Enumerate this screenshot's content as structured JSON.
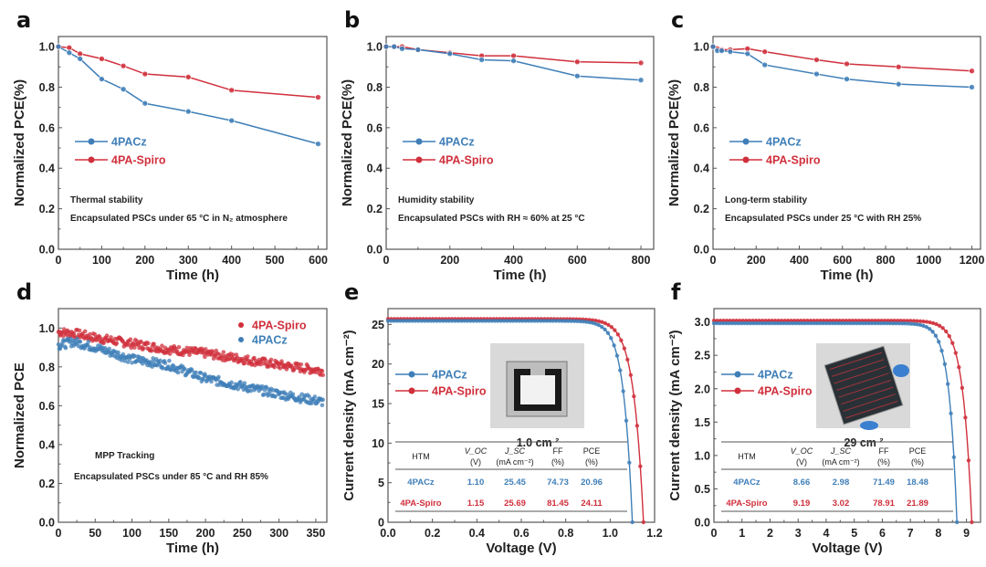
{
  "colors": {
    "4PACz": "#3f7fb8",
    "4PA-Spiro": "#d0303c",
    "axis": "#555555"
  },
  "chart_data": [
    {
      "panel": "a",
      "type": "line",
      "xlabel": "Time (h)",
      "ylabel": "Normalized PCE(%)",
      "xlim": [
        0,
        620
      ],
      "ylim": [
        0,
        1.05
      ],
      "xticks": [
        0,
        100,
        200,
        300,
        400,
        500,
        600
      ],
      "yticks": [
        0.0,
        0.2,
        0.4,
        0.6,
        0.8,
        1.0
      ],
      "ytick_labels": [
        "0.0",
        "0.2",
        "0.4",
        "0.6",
        "0.8",
        "1.0"
      ],
      "annotations": [
        "Thermal stability",
        "Encapsulated PSCs under 65 °C in N₂ atmosphere"
      ],
      "legend": "center-left",
      "series": [
        {
          "name": "4PACz",
          "x": [
            0,
            25,
            50,
            100,
            150,
            200,
            300,
            400,
            600
          ],
          "values": [
            1.0,
            0.97,
            0.94,
            0.84,
            0.79,
            0.72,
            0.68,
            0.635,
            0.52
          ]
        },
        {
          "name": "4PA-Spiro",
          "x": [
            0,
            25,
            50,
            100,
            150,
            200,
            300,
            400,
            600
          ],
          "values": [
            1.0,
            0.995,
            0.965,
            0.94,
            0.905,
            0.865,
            0.85,
            0.785,
            0.75
          ]
        }
      ]
    },
    {
      "panel": "b",
      "type": "line",
      "xlabel": "Time (h)",
      "ylabel": "Normalized PCE(%)",
      "xlim": [
        0,
        840
      ],
      "ylim": [
        0,
        1.05
      ],
      "xticks": [
        0,
        200,
        400,
        600,
        800
      ],
      "yticks": [
        0.0,
        0.2,
        0.4,
        0.6,
        0.8,
        1.0
      ],
      "ytick_labels": [
        "0.0",
        "0.2",
        "0.4",
        "0.6",
        "0.8",
        "1.0"
      ],
      "annotations": [
        "Humidity stability",
        "Encapsulated PSCs with  RH ≈ 60%  at 25 °C"
      ],
      "legend": "center-left",
      "series": [
        {
          "name": "4PACz",
          "x": [
            0,
            25,
            50,
            100,
            200,
            300,
            400,
            600,
            800
          ],
          "values": [
            1.0,
            1.0,
            0.99,
            0.985,
            0.965,
            0.935,
            0.93,
            0.855,
            0.835
          ]
        },
        {
          "name": "4PA-Spiro",
          "x": [
            0,
            25,
            50,
            100,
            200,
            300,
            400,
            600,
            800
          ],
          "values": [
            1.0,
            1.0,
            1.0,
            0.985,
            0.97,
            0.955,
            0.955,
            0.925,
            0.92
          ]
        }
      ]
    },
    {
      "panel": "c",
      "type": "line",
      "xlabel": "Time (h)",
      "ylabel": "Normalized PCE(%)",
      "xlim": [
        0,
        1240
      ],
      "ylim": [
        0,
        1.05
      ],
      "xticks": [
        0,
        200,
        400,
        600,
        800,
        1000,
        1200
      ],
      "yticks": [
        0.0,
        0.2,
        0.4,
        0.6,
        0.8,
        1.0
      ],
      "ytick_labels": [
        "0.0",
        "0.2",
        "0.4",
        "0.6",
        "0.8",
        "1.0"
      ],
      "annotations": [
        "Long-term stability",
        "Encapsulated PSCs under 25 °C  with RH 25%"
      ],
      "legend": "center-left",
      "series": [
        {
          "name": "4PACz",
          "x": [
            0,
            20,
            40,
            80,
            160,
            240,
            480,
            620,
            860,
            1200
          ],
          "values": [
            1.0,
            0.98,
            0.98,
            0.975,
            0.965,
            0.91,
            0.865,
            0.84,
            0.815,
            0.8
          ]
        },
        {
          "name": "4PA-Spiro",
          "x": [
            0,
            20,
            40,
            80,
            160,
            240,
            480,
            620,
            860,
            1200
          ],
          "values": [
            1.0,
            0.99,
            0.985,
            0.985,
            0.99,
            0.975,
            0.935,
            0.915,
            0.9,
            0.88
          ]
        }
      ]
    },
    {
      "panel": "d",
      "type": "scatter",
      "xlabel": "Time (h)",
      "ylabel": "Normalized PCE",
      "xlim": [
        0,
        365
      ],
      "ylim": [
        0,
        1.1
      ],
      "xticks": [
        0,
        50,
        100,
        150,
        200,
        250,
        300,
        350
      ],
      "yticks": [
        0.0,
        0.2,
        0.4,
        0.6,
        0.8,
        1.0
      ],
      "ytick_labels": [
        "0.0",
        "0.2",
        "0.4",
        "0.6",
        "0.8",
        "1.0"
      ],
      "annotations": [
        "MPP Tracking",
        "Encapsulated PSCs under 85 °C and RH 85%"
      ],
      "legend": "top-right",
      "series": [
        {
          "name": "4PA-Spiro",
          "x": [
            0,
            25,
            50,
            100,
            150,
            200,
            250,
            300,
            360
          ],
          "values": [
            0.98,
            0.97,
            0.95,
            0.92,
            0.89,
            0.87,
            0.84,
            0.81,
            0.78
          ]
        },
        {
          "name": "4PACz",
          "x": [
            0,
            20,
            50,
            100,
            150,
            200,
            250,
            300,
            360
          ],
          "values": [
            0.91,
            0.93,
            0.9,
            0.84,
            0.81,
            0.74,
            0.7,
            0.66,
            0.62
          ]
        }
      ]
    },
    {
      "panel": "e",
      "type": "line",
      "xlabel": "Voltage (V)",
      "ylabel": "Current density (mA cm⁻²)",
      "xlim": [
        0,
        1.2
      ],
      "ylim": [
        0,
        27
      ],
      "xticks": [
        0.0,
        0.2,
        0.4,
        0.6,
        0.8,
        1.0,
        1.2
      ],
      "xtick_labels": [
        "0.0",
        "0.2",
        "0.4",
        "0.6",
        "0.8",
        "1.0",
        "1.2"
      ],
      "yticks": [
        0,
        5,
        10,
        15,
        20,
        25
      ],
      "ytick_labels": [
        "0",
        "5",
        "10",
        "15",
        "20",
        "25"
      ],
      "legend": "center-left",
      "inset_caption": "1.0 cm ²",
      "series": [
        {
          "name": "4PACz",
          "voc": 1.1,
          "jsc": 25.45,
          "ff": 74.73,
          "pce": 20.96
        },
        {
          "name": "4PA-Spiro",
          "voc": 1.15,
          "jsc": 25.69,
          "ff": 81.45,
          "pce": 24.11
        }
      ],
      "table": {
        "headers": [
          [
            "HTM",
            ""
          ],
          [
            "V_OC",
            "(V)"
          ],
          [
            "J_SC",
            "(mA cm⁻²)"
          ],
          [
            "FF",
            "(%)"
          ],
          [
            "PCE",
            "(%)"
          ]
        ],
        "rows": [
          [
            "4PACz",
            "1.10",
            "25.45",
            "74.73",
            "20.96"
          ],
          [
            "4PA-Spiro",
            "1.15",
            "25.69",
            "81.45",
            "24.11"
          ]
        ]
      }
    },
    {
      "panel": "f",
      "type": "line",
      "xlabel": "Voltage (V)",
      "ylabel": "Current density (mA cm⁻²)",
      "xlim": [
        0,
        9.5
      ],
      "ylim": [
        0,
        3.2
      ],
      "xticks": [
        0,
        1,
        2,
        3,
        4,
        5,
        6,
        7,
        8,
        9
      ],
      "xtick_labels": [
        "0",
        "1",
        "2",
        "3",
        "4",
        "5",
        "6",
        "7",
        "8",
        "9"
      ],
      "yticks": [
        0.0,
        0.5,
        1.0,
        1.5,
        2.0,
        2.5,
        3.0
      ],
      "ytick_labels": [
        "0.0",
        "0.5",
        "1.0",
        "1.5",
        "2.0",
        "2.5",
        "3.0"
      ],
      "legend": "center-left",
      "inset_caption": "29 cm ²",
      "series": [
        {
          "name": "4PACz",
          "voc": 8.66,
          "jsc": 2.98,
          "ff": 71.49,
          "pce": 18.48
        },
        {
          "name": "4PA-Spiro",
          "voc": 9.19,
          "jsc": 3.02,
          "ff": 78.91,
          "pce": 21.89
        }
      ],
      "table": {
        "headers": [
          [
            "HTM",
            ""
          ],
          [
            "V_OC",
            "(V)"
          ],
          [
            "J_SC",
            "(mA cm⁻²)"
          ],
          [
            "FF",
            "(%)"
          ],
          [
            "PCE",
            "(%)"
          ]
        ],
        "rows": [
          [
            "4PACz",
            "8.66",
            "2.98",
            "71.49",
            "18.48"
          ],
          [
            "4PA-Spiro",
            "9.19",
            "3.02",
            "78.91",
            "21.89"
          ]
        ]
      }
    }
  ]
}
